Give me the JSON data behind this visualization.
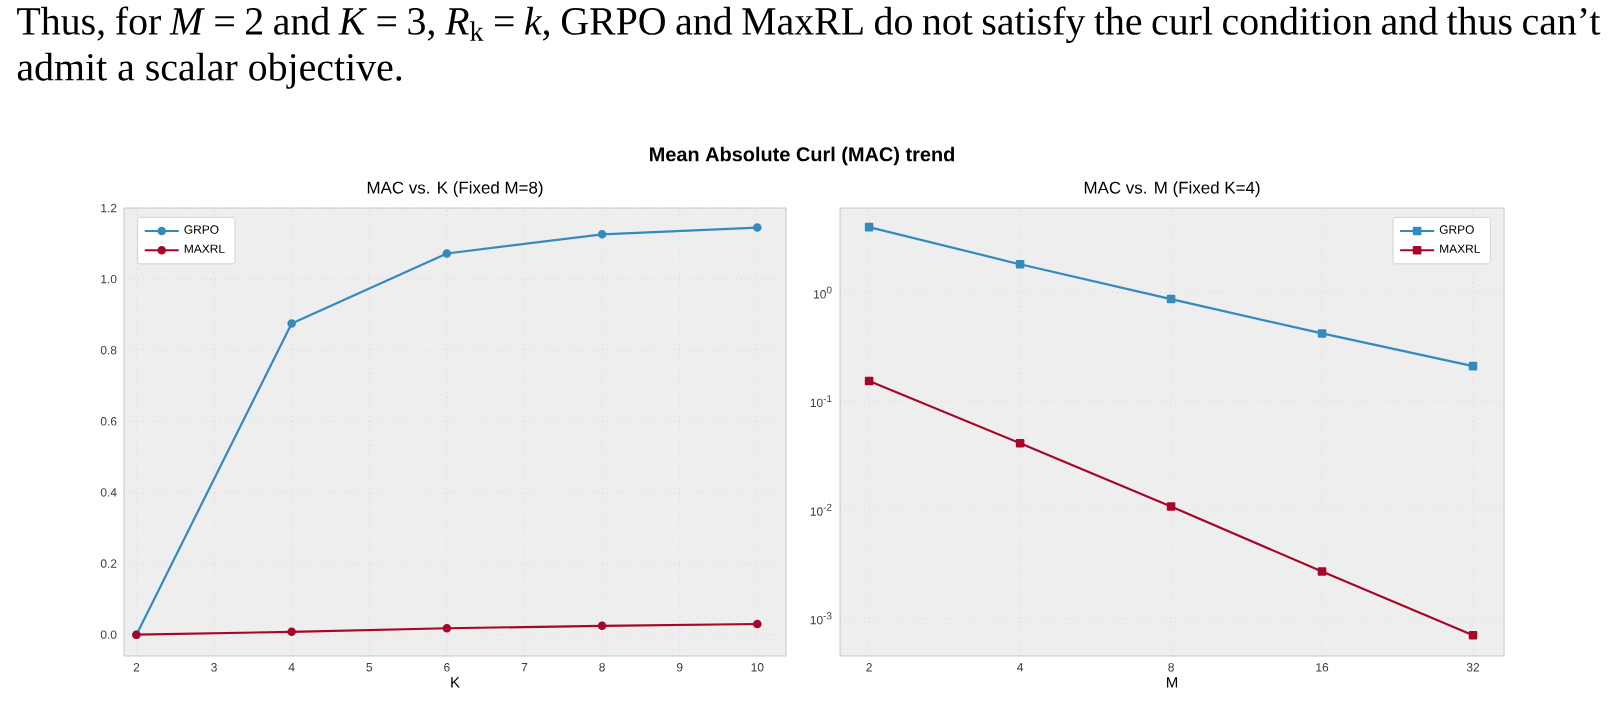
{
  "chart_data": [
    {
      "type": "line",
      "title": "MAC vs. K (Fixed M=8)",
      "xlabel": "K",
      "annotations": [
        "Thus, for *M* = 2 and *K* = 3, *R*$_{k}$ = *k*, GRPO and MaxRL do not satisfy the curl condition and thus can’t admit a scalar objective.",
        "**Mean Absolute Curl (MAC) trend**"
      ],
      "x": [
        2,
        4,
        6,
        8,
        10
      ],
      "series": [
        {
          "name": "GRPO",
          "color": "#348abd",
          "values": [
            0.0,
            0.875,
            1.072,
            1.126,
            1.145
          ]
        },
        {
          "name": "MAXRL",
          "color": "#a60628",
          "values": [
            0.0,
            0.008,
            0.018,
            0.025,
            0.03
          ]
        }
      ],
      "xlim": [
        1.84,
        10.37
      ],
      "ylim": [
        -0.06,
        1.2
      ],
      "xticks": [
        2,
        3,
        4,
        5,
        6,
        7,
        8,
        9,
        10
      ],
      "yticks": [
        {
          "value": 0,
          "label": "0.0"
        },
        0.2,
        0.4,
        0.6,
        0.8,
        {
          "value": 1,
          "label": "1.0"
        },
        1.2
      ],
      "grid": true,
      "legend": "top left",
      "marker": "circle",
      "line_style": "solid"
    },
    {
      "type": "line",
      "title": "MAC vs. M (Fixed K=4)",
      "xlabel": "M",
      "x": [
        2,
        4,
        8,
        16,
        32
      ],
      "series": [
        {
          "name": "GRPO",
          "color": "#348abd",
          "values": [
            4.0,
            1.82,
            0.87,
            0.42,
            0.21
          ]
        },
        {
          "name": "MAXRL",
          "color": "#a60628",
          "values": [
            0.153,
            0.041,
            0.0107,
            0.0027,
            0.0007
          ]
        }
      ],
      "log": "xy",
      "xlim": [
        1.75,
        36.9
      ],
      "ylim": [
        0.00045,
        6.0
      ],
      "xticks": [
        2,
        4,
        8,
        16,
        32
      ],
      "yticks": [
        {
          "value": 0.001,
          "label": "10$^{-3}$"
        },
        {
          "value": 0.01,
          "label": "10$^{-2}$"
        },
        {
          "value": 0.1,
          "label": "10$^{-1}$"
        },
        {
          "value": 1,
          "label": "10$^{0}$"
        }
      ],
      "grid": true,
      "legend": "top right",
      "marker": "square",
      "line_style": "solid"
    }
  ]
}
